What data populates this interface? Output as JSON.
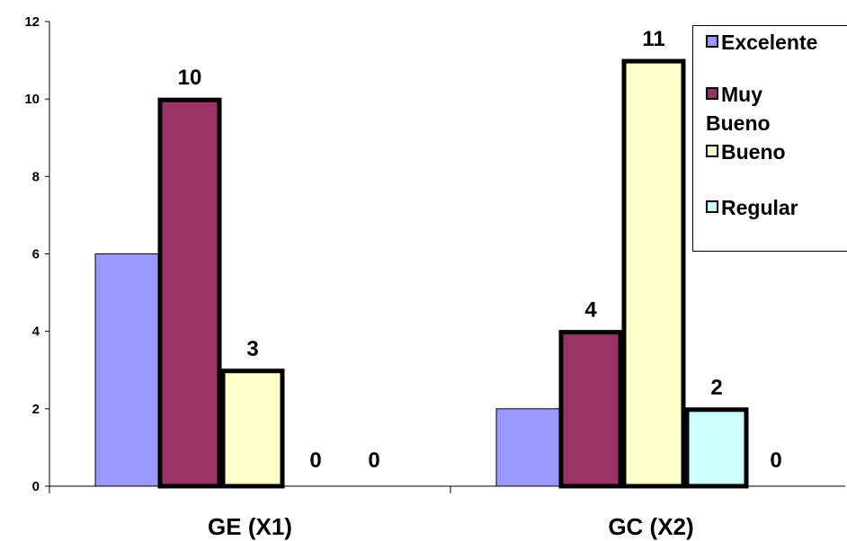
{
  "chart_data": {
    "type": "bar",
    "categories": [
      "GE (X1)",
      "GC (X2)"
    ],
    "series": [
      {
        "name": "Excelente",
        "color": "#9999ff",
        "values": [
          6,
          2
        ],
        "labels": [
          "",
          ""
        ]
      },
      {
        "name": "Muy Bueno",
        "color": "#993366",
        "values": [
          10,
          4
        ],
        "labels": [
          "10",
          "4"
        ]
      },
      {
        "name": "Bueno",
        "color": "#ffffcc",
        "values": [
          3,
          11
        ],
        "labels": [
          "3",
          "11"
        ]
      },
      {
        "name": "Regular",
        "color": "#ccffff",
        "values": [
          0,
          2
        ],
        "labels": [
          "0",
          "2"
        ]
      }
    ],
    "extra_labels": [
      "0",
      "0"
    ],
    "ylim": [
      0,
      12
    ],
    "yticks": [
      "0",
      "2",
      "4",
      "6",
      "8",
      "10",
      "12"
    ],
    "title": "",
    "xlabel": "",
    "ylabel": "",
    "legend": "top-right",
    "grid": false
  }
}
